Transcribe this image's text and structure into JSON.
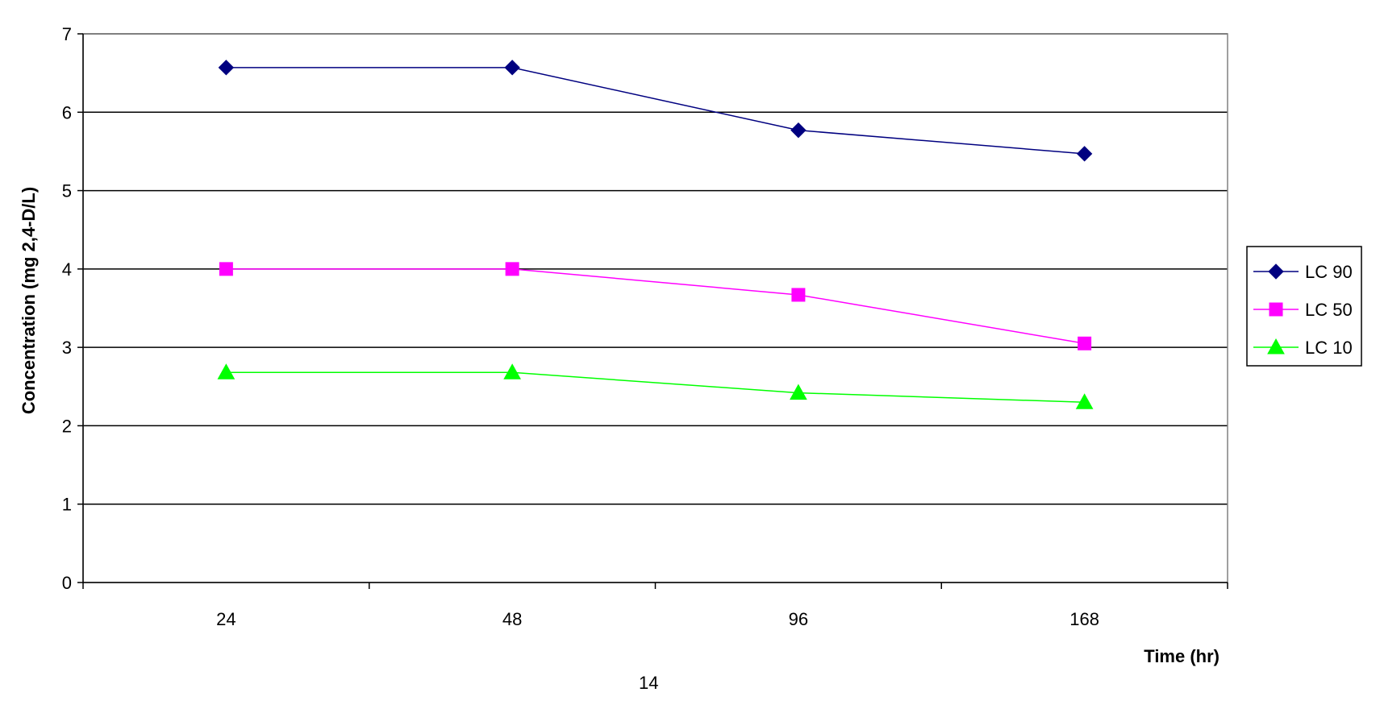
{
  "chart_data": {
    "type": "line",
    "categories": [
      "24",
      "48",
      "96",
      "168"
    ],
    "xlabel": "Time (hr)",
    "ylabel": "Concentration (mg 2,4-D/L)",
    "ylim": [
      0,
      7
    ],
    "yticks": [
      "0",
      "1",
      "2",
      "3",
      "4",
      "5",
      "6",
      "7"
    ],
    "grid": true,
    "legend_position": "right",
    "series": [
      {
        "name": "LC 90",
        "values": [
          6.57,
          6.57,
          5.77,
          5.47
        ],
        "color": "#000080",
        "marker": "diamond"
      },
      {
        "name": "LC 50",
        "values": [
          4.0,
          4.0,
          3.67,
          3.05
        ],
        "color": "#ff00ff",
        "marker": "square"
      },
      {
        "name": "LC 10",
        "values": [
          2.68,
          2.68,
          2.42,
          2.3
        ],
        "color": "#00ff00",
        "marker": "triangle"
      }
    ]
  },
  "page_number": "14"
}
